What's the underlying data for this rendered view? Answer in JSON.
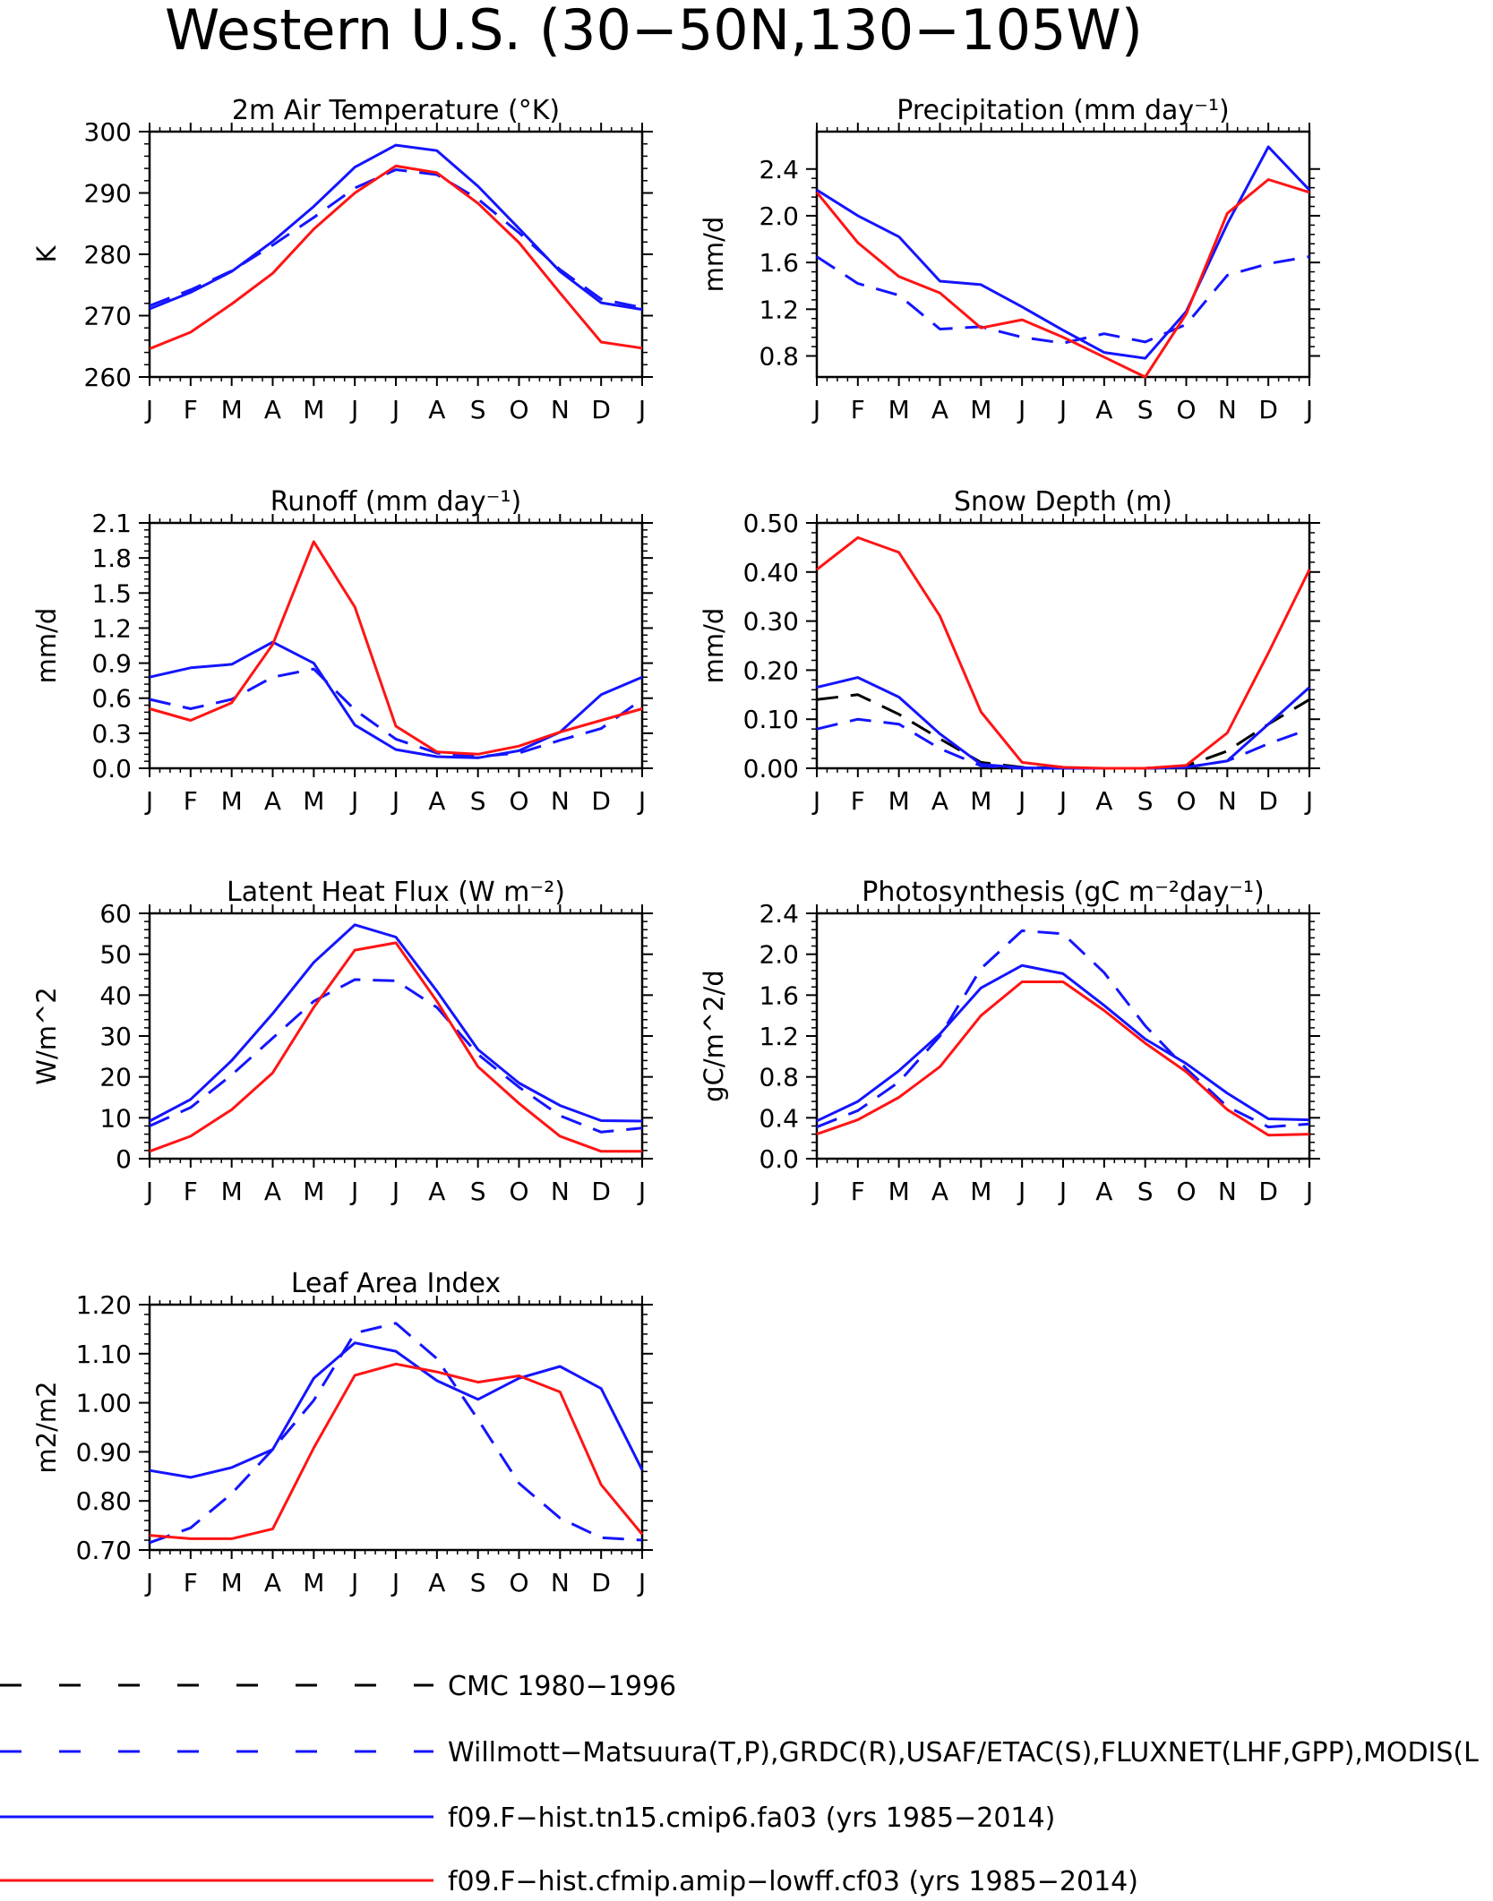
{
  "page_title": "Western U.S. (30−50N,130−105W)",
  "colors": {
    "obs_cmc": "#000000",
    "obs_multi": "#1414ff",
    "model_cmip6": "#1414ff",
    "model_cfmip": "#ff1414"
  },
  "legend": [
    {
      "key": "obs_cmc",
      "label": "CMC 1980−1996",
      "style": "dashed"
    },
    {
      "key": "obs_multi",
      "label": "Willmott−Matsuura(T,P),GRDC(R),USAF/ETAC(S),FLUXNET(LHF,GPP),MODIS(L",
      "style": "dashed"
    },
    {
      "key": "model_cmip6",
      "label": "f09.F−hist.tn15.cmip6.fa03 (yrs 1985−2014)",
      "style": "solid"
    },
    {
      "key": "model_cfmip",
      "label": "f09.F−hist.cfmip.amip−lowff.cf03 (yrs 1985−2014)",
      "style": "solid"
    }
  ],
  "chart_data": [
    {
      "type": "line",
      "title": "2m Air Temperature (°K)",
      "ylabel": "K",
      "categories": [
        "J",
        "F",
        "M",
        "A",
        "M",
        "J",
        "J",
        "A",
        "S",
        "O",
        "N",
        "D",
        "J"
      ],
      "ylim": [
        260,
        300
      ],
      "yticks": [
        260,
        270,
        280,
        290,
        300
      ],
      "ytick_labels": [
        "260",
        "270",
        "280",
        "290",
        "300"
      ],
      "series": [
        {
          "key": "obs_multi",
          "style": "dashed",
          "values": [
            271.6,
            274.2,
            277.3,
            281.5,
            286.0,
            290.8,
            293.8,
            293.0,
            289.0,
            283.5,
            277.5,
            272.7,
            271.3
          ]
        },
        {
          "key": "model_cmip6",
          "style": "solid",
          "values": [
            271.1,
            273.8,
            277.2,
            282.1,
            287.8,
            294.2,
            297.8,
            296.9,
            291.1,
            284.2,
            277.2,
            272.1,
            271.0
          ]
        },
        {
          "key": "model_cfmip",
          "style": "solid",
          "values": [
            264.6,
            267.3,
            271.9,
            276.9,
            284.1,
            290.0,
            294.4,
            293.3,
            288.3,
            281.9,
            273.7,
            265.7,
            264.7
          ]
        }
      ]
    },
    {
      "type": "line",
      "title": "Precipitation (mm day⁻¹)",
      "ylabel": "mm/d",
      "categories": [
        "J",
        "F",
        "M",
        "A",
        "M",
        "J",
        "J",
        "A",
        "S",
        "O",
        "N",
        "D",
        "J"
      ],
      "ylim": [
        0.62,
        2.72
      ],
      "yticks": [
        0.8,
        1.2,
        1.6,
        2.0,
        2.4
      ],
      "ytick_labels": [
        "0.8",
        "1.2",
        "1.6",
        "2.0",
        "2.4"
      ],
      "series": [
        {
          "key": "obs_multi",
          "style": "dashed",
          "values": [
            1.65,
            1.42,
            1.32,
            1.03,
            1.05,
            0.96,
            0.91,
            0.99,
            0.92,
            1.07,
            1.49,
            1.59,
            1.65
          ]
        },
        {
          "key": "model_cmip6",
          "style": "solid",
          "values": [
            2.22,
            2.0,
            1.82,
            1.44,
            1.41,
            1.22,
            1.02,
            0.83,
            0.78,
            1.18,
            1.93,
            2.59,
            2.22
          ]
        },
        {
          "key": "model_cfmip",
          "style": "solid",
          "values": [
            2.2,
            1.77,
            1.48,
            1.34,
            1.04,
            1.11,
            0.96,
            0.79,
            0.62,
            1.16,
            2.02,
            2.31,
            2.2
          ]
        }
      ]
    },
    {
      "type": "line",
      "title": "Runoff (mm day⁻¹)",
      "ylabel": "mm/d",
      "categories": [
        "J",
        "F",
        "M",
        "A",
        "M",
        "J",
        "J",
        "A",
        "S",
        "O",
        "N",
        "D",
        "J"
      ],
      "ylim": [
        0,
        2.1
      ],
      "yticks": [
        0,
        0.3,
        0.6,
        0.9,
        1.2,
        1.5,
        1.8,
        2.1
      ],
      "ytick_labels": [
        "0.0",
        "0.3",
        "0.6",
        "0.9",
        "1.2",
        "1.5",
        "1.8",
        "2.1"
      ],
      "series": [
        {
          "key": "obs_multi",
          "style": "dashed",
          "values": [
            0.59,
            0.51,
            0.59,
            0.78,
            0.85,
            0.5,
            0.25,
            0.13,
            0.1,
            0.13,
            0.24,
            0.34,
            0.59
          ]
        },
        {
          "key": "model_cmip6",
          "style": "solid",
          "values": [
            0.78,
            0.86,
            0.89,
            1.08,
            0.9,
            0.37,
            0.16,
            0.1,
            0.09,
            0.15,
            0.31,
            0.63,
            0.78
          ]
        },
        {
          "key": "model_cfmip",
          "style": "solid",
          "values": [
            0.51,
            0.41,
            0.56,
            1.06,
            1.94,
            1.38,
            0.36,
            0.14,
            0.12,
            0.19,
            0.31,
            0.41,
            0.51
          ]
        }
      ]
    },
    {
      "type": "line",
      "title": "Snow Depth (m)",
      "ylabel": "mm/d",
      "categories": [
        "J",
        "F",
        "M",
        "A",
        "M",
        "J",
        "J",
        "A",
        "S",
        "O",
        "N",
        "D",
        "J"
      ],
      "ylim": [
        0,
        0.5
      ],
      "yticks": [
        0,
        0.1,
        0.2,
        0.3,
        0.4,
        0.5
      ],
      "ytick_labels": [
        "0.00",
        "0.10",
        "0.20",
        "0.30",
        "0.40",
        "0.50"
      ],
      "series": [
        {
          "key": "obs_cmc",
          "style": "dashed",
          "values": [
            0.14,
            0.15,
            0.11,
            0.06,
            0.012,
            0.002,
            0.0,
            0.0,
            0.0,
            0.005,
            0.035,
            0.09,
            0.14
          ]
        },
        {
          "key": "obs_multi",
          "style": "dashed",
          "values": [
            0.08,
            0.1,
            0.09,
            0.04,
            0.005,
            0.0,
            0.0,
            0.0,
            0.0,
            0.002,
            0.015,
            0.05,
            0.08
          ]
        },
        {
          "key": "model_cmip6",
          "style": "solid",
          "values": [
            0.165,
            0.185,
            0.145,
            0.07,
            0.008,
            0.001,
            0.0,
            0.0,
            0.0,
            0.002,
            0.015,
            0.09,
            0.165
          ]
        },
        {
          "key": "model_cfmip",
          "style": "solid",
          "values": [
            0.405,
            0.47,
            0.44,
            0.31,
            0.115,
            0.012,
            0.002,
            0.0,
            0.0,
            0.006,
            0.072,
            0.235,
            0.405
          ]
        }
      ]
    },
    {
      "type": "line",
      "title": "Latent Heat Flux (W m⁻²)",
      "ylabel": "W/m^2",
      "categories": [
        "J",
        "F",
        "M",
        "A",
        "M",
        "J",
        "J",
        "A",
        "S",
        "O",
        "N",
        "D",
        "J"
      ],
      "ylim": [
        0,
        60
      ],
      "yticks": [
        0,
        10,
        20,
        30,
        40,
        50,
        60
      ],
      "ytick_labels": [
        "0",
        "10",
        "20",
        "30",
        "40",
        "50",
        "60"
      ],
      "series": [
        {
          "key": "obs_multi",
          "style": "dashed",
          "values": [
            8.0,
            12.5,
            20.5,
            29.5,
            38.5,
            43.8,
            43.5,
            37.0,
            25.5,
            17.5,
            10.5,
            6.5,
            7.5
          ]
        },
        {
          "key": "model_cmip6",
          "style": "solid",
          "values": [
            9.2,
            14.5,
            24.0,
            35.5,
            48.0,
            57.2,
            54.2,
            41.0,
            26.7,
            18.5,
            13.0,
            9.3,
            9.2
          ]
        },
        {
          "key": "model_cfmip",
          "style": "solid",
          "values": [
            1.8,
            5.5,
            12.0,
            21.0,
            37.0,
            51.0,
            52.8,
            38.5,
            22.5,
            13.5,
            5.5,
            1.8,
            1.8
          ]
        }
      ]
    },
    {
      "type": "line",
      "title": "Photosynthesis (gC m⁻²day⁻¹)",
      "ylabel": "gC/m^2/d",
      "categories": [
        "J",
        "F",
        "M",
        "A",
        "M",
        "J",
        "J",
        "A",
        "S",
        "O",
        "N",
        "D",
        "J"
      ],
      "ylim": [
        0,
        2.4
      ],
      "yticks": [
        0,
        0.4,
        0.8,
        1.2,
        1.6,
        2.0,
        2.4
      ],
      "ytick_labels": [
        "0.0",
        "0.4",
        "0.8",
        "1.2",
        "1.6",
        "2.0",
        "2.4"
      ],
      "series": [
        {
          "key": "obs_multi",
          "style": "dashed",
          "values": [
            0.31,
            0.47,
            0.75,
            1.2,
            1.86,
            2.23,
            2.2,
            1.82,
            1.3,
            0.88,
            0.51,
            0.31,
            0.34
          ]
        },
        {
          "key": "model_cmip6",
          "style": "solid",
          "values": [
            0.37,
            0.56,
            0.86,
            1.22,
            1.67,
            1.89,
            1.81,
            1.5,
            1.17,
            0.93,
            0.64,
            0.39,
            0.38
          ]
        },
        {
          "key": "model_cfmip",
          "style": "solid",
          "values": [
            0.24,
            0.38,
            0.6,
            0.9,
            1.4,
            1.73,
            1.73,
            1.45,
            1.13,
            0.85,
            0.48,
            0.23,
            0.24
          ]
        }
      ]
    },
    {
      "type": "line",
      "title": "Leaf Area Index",
      "ylabel": "m2/m2",
      "categories": [
        "J",
        "F",
        "M",
        "A",
        "M",
        "J",
        "J",
        "A",
        "S",
        "O",
        "N",
        "D",
        "J"
      ],
      "ylim": [
        0.7,
        1.2
      ],
      "yticks": [
        0.7,
        0.8,
        0.9,
        1.0,
        1.1,
        1.2
      ],
      "ytick_labels": [
        "0.70",
        "0.80",
        "0.90",
        "1.00",
        "1.10",
        "1.20"
      ],
      "series": [
        {
          "key": "obs_multi",
          "style": "dashed",
          "values": [
            0.715,
            0.745,
            0.815,
            0.905,
            1.005,
            1.142,
            1.162,
            1.09,
            0.966,
            0.836,
            0.765,
            0.725,
            0.72
          ]
        },
        {
          "key": "model_cmip6",
          "style": "solid",
          "values": [
            0.862,
            0.848,
            0.868,
            0.905,
            1.05,
            1.122,
            1.105,
            1.045,
            1.007,
            1.05,
            1.074,
            1.029,
            0.863
          ]
        },
        {
          "key": "model_cfmip",
          "style": "solid",
          "values": [
            0.73,
            0.723,
            0.723,
            0.743,
            0.908,
            1.056,
            1.079,
            1.063,
            1.042,
            1.055,
            1.022,
            0.833,
            0.732
          ]
        }
      ]
    }
  ]
}
